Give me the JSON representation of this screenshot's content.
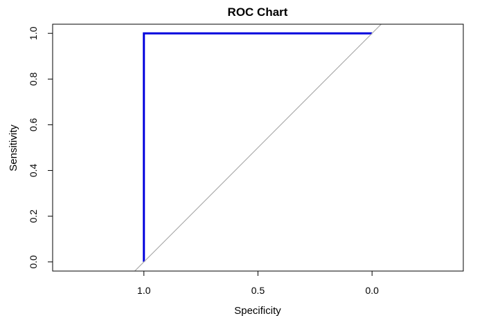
{
  "chart_data": {
    "type": "line",
    "title": "ROC Chart",
    "xlabel": "Specificity",
    "ylabel": "Sensitivity",
    "x_reversed": true,
    "xlim": [
      1.4,
      -0.4
    ],
    "ylim": [
      -0.04,
      1.04
    ],
    "xticks": [
      1.0,
      0.5,
      0.0
    ],
    "xtick_labels": [
      "1.0",
      "0.5",
      "0.0"
    ],
    "yticks": [
      0.0,
      0.2,
      0.4,
      0.6,
      0.8,
      1.0
    ],
    "ytick_labels": [
      "0.0",
      "0.2",
      "0.4",
      "0.6",
      "0.8",
      "1.0"
    ],
    "grid": false,
    "series": [
      {
        "role": "roc-curve",
        "color": "#0000dd",
        "points": [
          {
            "specificity": 1.0,
            "sensitivity": 0.0
          },
          {
            "specificity": 1.0,
            "sensitivity": 1.0
          },
          {
            "specificity": 0.0,
            "sensitivity": 1.0
          }
        ]
      },
      {
        "role": "diagonal-reference",
        "color": "#aaaaaa",
        "points": [
          {
            "specificity": 1.04,
            "sensitivity": -0.04
          },
          {
            "specificity": -0.04,
            "sensitivity": 1.04
          }
        ]
      }
    ]
  }
}
